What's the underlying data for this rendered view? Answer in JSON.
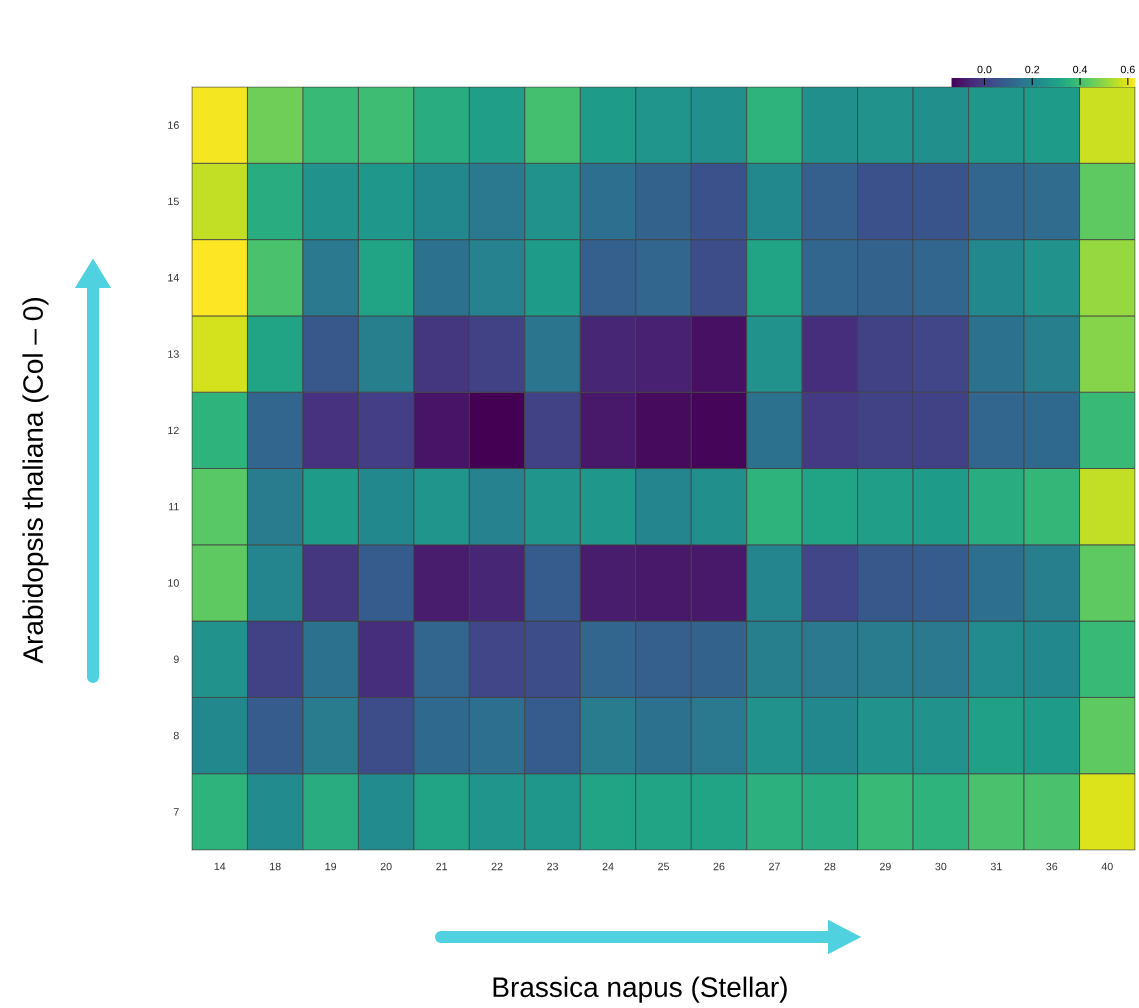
{
  "chart_data": {
    "type": "heatmap",
    "xlabel": "Brassica napus (Stellar)",
    "ylabel": "Arabidopsis thaliana (Col – 0)",
    "categories": [
      "14",
      "18",
      "19",
      "20",
      "21",
      "22",
      "23",
      "24",
      "25",
      "26",
      "27",
      "28",
      "29",
      "30",
      "31",
      "36",
      "40"
    ],
    "y_categories": [
      "16",
      "15",
      "14",
      "13",
      "12",
      "11",
      "10",
      "9",
      "8",
      "7"
    ],
    "cells": [
      [
        0.62,
        0.46,
        0.38,
        0.39,
        0.34,
        0.29,
        0.4,
        0.28,
        0.26,
        0.24,
        0.36,
        0.24,
        0.25,
        0.24,
        0.27,
        0.28,
        0.57
      ],
      [
        0.56,
        0.34,
        0.25,
        0.27,
        0.22,
        0.17,
        0.25,
        0.14,
        0.1,
        0.05,
        0.22,
        0.09,
        0.05,
        0.06,
        0.11,
        0.13,
        0.44
      ],
      [
        0.63,
        0.41,
        0.17,
        0.31,
        0.15,
        0.2,
        0.28,
        0.09,
        0.11,
        0.04,
        0.31,
        0.11,
        0.1,
        0.11,
        0.22,
        0.25,
        0.51
      ],
      [
        0.58,
        0.31,
        0.07,
        0.19,
        -0.02,
        0.01,
        0.16,
        -0.06,
        -0.07,
        -0.11,
        0.25,
        -0.04,
        0.01,
        0.02,
        0.15,
        0.19,
        0.49
      ],
      [
        0.36,
        0.11,
        -0.03,
        0.0,
        -0.1,
        -0.14,
        0.01,
        -0.09,
        -0.12,
        -0.13,
        0.15,
        -0.01,
        0.01,
        0.01,
        0.11,
        0.12,
        0.38
      ],
      [
        0.43,
        0.18,
        0.28,
        0.22,
        0.26,
        0.2,
        0.26,
        0.27,
        0.21,
        0.24,
        0.36,
        0.31,
        0.29,
        0.28,
        0.34,
        0.37,
        0.56
      ],
      [
        0.44,
        0.21,
        -0.02,
        0.08,
        -0.08,
        -0.06,
        0.08,
        -0.08,
        -0.09,
        -0.09,
        0.21,
        0.02,
        0.07,
        0.08,
        0.14,
        0.19,
        0.44
      ],
      [
        0.25,
        0.01,
        0.15,
        -0.04,
        0.11,
        0.02,
        0.04,
        0.11,
        0.09,
        0.1,
        0.19,
        0.17,
        0.18,
        0.17,
        0.23,
        0.22,
        0.38
      ],
      [
        0.22,
        0.08,
        0.18,
        0.04,
        0.12,
        0.14,
        0.08,
        0.18,
        0.15,
        0.17,
        0.25,
        0.22,
        0.25,
        0.25,
        0.3,
        0.28,
        0.44
      ],
      [
        0.36,
        0.23,
        0.34,
        0.23,
        0.31,
        0.26,
        0.27,
        0.31,
        0.31,
        0.31,
        0.35,
        0.34,
        0.38,
        0.36,
        0.41,
        0.41,
        0.59
      ]
    ],
    "clim": [
      -0.14,
      0.63
    ],
    "cticks": [
      {
        "value": 0,
        "label": "0.0"
      },
      {
        "value": 0.2,
        "label": "0.2"
      },
      {
        "value": 0.4,
        "label": "0.4"
      },
      {
        "value": 0.6,
        "label": "0.6"
      }
    ]
  }
}
